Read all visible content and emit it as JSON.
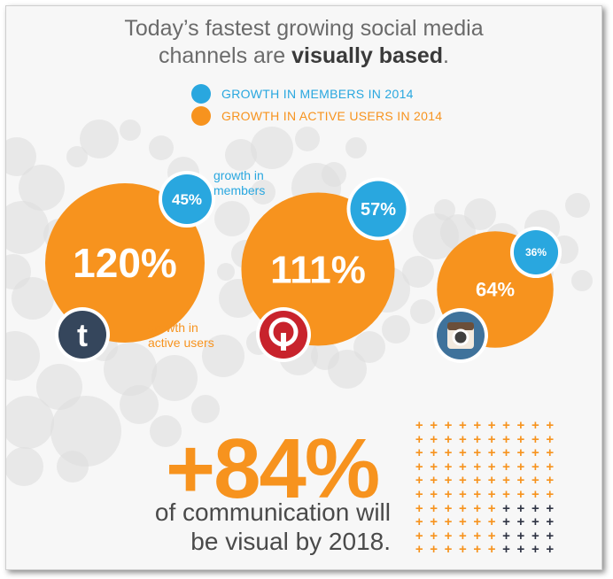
{
  "headline": {
    "line1": "Today’s fastest growing social media",
    "line2_prefix": "channels are ",
    "line2_bold": "visually based",
    "line2_suffix": "."
  },
  "colors": {
    "members": "#29a7df",
    "active_users": "#f7931e",
    "bubble_gray": "#dcdcdc",
    "tumblr": "#35465c",
    "pinterest": "#c8232c",
    "instagram": "#3f729b",
    "dark_plus": "#2f3444"
  },
  "chart_data": {
    "type": "bubble",
    "legend": [
      {
        "label": "GROWTH IN MEMBERS IN 2014",
        "color": "#29a7df"
      },
      {
        "label": "GROWTH IN ACTIVE USERS IN 2014",
        "color": "#f7931e"
      }
    ],
    "categories": [
      "Tumblr",
      "Pinterest",
      "Instagram"
    ],
    "series": [
      {
        "name": "GROWTH IN MEMBERS IN 2014",
        "values": [
          45,
          57,
          36
        ]
      },
      {
        "name": "GROWTH IN ACTIVE USERS IN 2014",
        "values": [
          120,
          111,
          64
        ]
      }
    ],
    "icons": [
      "tumblr-icon",
      "pinterest-icon",
      "instagram-icon"
    ],
    "annotations": {
      "members": "growth in members",
      "active_users": "growth in active users"
    }
  },
  "stat": {
    "value": "+84%",
    "caption_line1": "of communication will",
    "caption_line2": "be visual by 2018.",
    "percent": 84,
    "grid_total": 100
  }
}
